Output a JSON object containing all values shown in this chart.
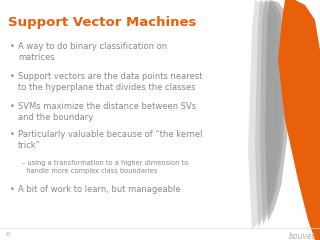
{
  "title": "Support Vector Machines",
  "title_color": "#E8600A",
  "title_fontsize": 9.5,
  "bg_color": "#FFFFFF",
  "slide_number": "42",
  "bullet_color": "#888888",
  "bullet_fontsize": 6.0,
  "sub_bullet_fontsize": 4.8,
  "bullets": [
    "A way to do binary classification on\nmatrices",
    "Support vectors are the data points nearest\nto the hyperplane that divides the classes",
    "SVMs maximize the distance between SVs\nand the boundary",
    "Particularly valuable because of “the kernel\ntrick”",
    "A bit of work to learn, but manageable"
  ],
  "sub_bullet": "– using a transformation to a higher dimension to\n  handle more complex class boundaries",
  "logo_text": "bouvet",
  "logo_color": "#AAAAAA",
  "logo_fontsize": 5.5,
  "orange_color": "#E8600A",
  "gray1_color": "#C8C8C8",
  "gray2_color": "#B8B8B8",
  "gray3_color": "#A8A8A8"
}
